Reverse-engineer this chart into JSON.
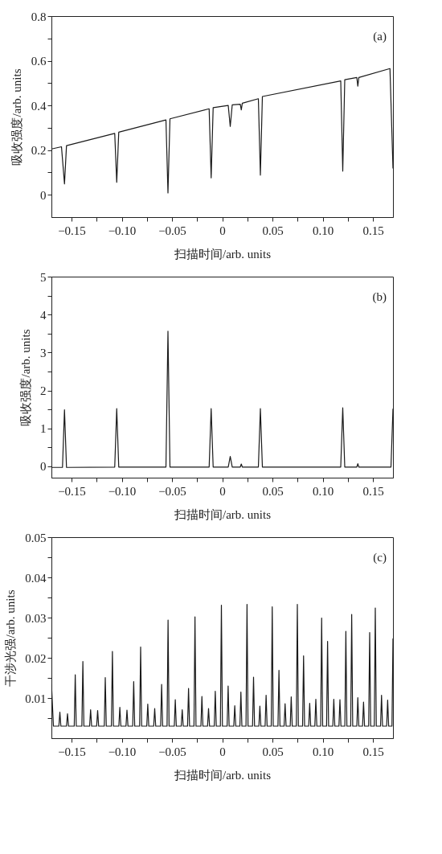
{
  "chart_data": [
    {
      "type": "line",
      "xlabel": "扫描时间/arb. units",
      "ylabel": "吸收强度/arb. units",
      "annotations": [
        "(a)"
      ],
      "grid": false,
      "xlim": [
        -0.17,
        0.17
      ],
      "ylim": [
        -0.1,
        0.8
      ],
      "xticks": [
        {
          "value": -0.15,
          "label": "−0.15"
        },
        {
          "value": -0.125,
          "label": null
        },
        {
          "value": -0.1,
          "label": "−0.10"
        },
        {
          "value": -0.075,
          "label": null
        },
        {
          "value": -0.05,
          "label": "−0.05"
        },
        {
          "value": -0.025,
          "label": null
        },
        {
          "value": 0,
          "label": "0"
        },
        {
          "value": 0.025,
          "label": null
        },
        {
          "value": 0.05,
          "label": "0.05"
        },
        {
          "value": 0.075,
          "label": null
        },
        {
          "value": 0.1,
          "label": "0.10"
        },
        {
          "value": 0.125,
          "label": null
        },
        {
          "value": 0.15,
          "label": "0.15"
        }
      ],
      "yticks": [
        0,
        {
          "value": 0.1,
          "label": null
        },
        0.2,
        {
          "value": 0.3,
          "label": null
        },
        0.4,
        {
          "value": 0.5,
          "label": null
        },
        0.6,
        {
          "value": 0.7,
          "label": null
        },
        0.8
      ],
      "series": [
        {
          "color": "#1a1a1a",
          "x": [
            -0.17,
            -0.16,
            -0.157,
            -0.155,
            -0.107,
            -0.105,
            -0.103,
            -0.056,
            -0.054,
            -0.052,
            -0.013,
            -0.011,
            -0.009,
            0.006,
            0.008,
            0.01,
            0.018,
            0.019,
            0.02,
            0.036,
            0.038,
            0.04,
            0.118,
            0.12,
            0.122,
            0.134,
            0.135,
            0.136,
            0.167,
            0.17
          ],
          "values": [
            0.205,
            0.215,
            0.049,
            0.22,
            0.275,
            0.056,
            0.28,
            0.335,
            0.008,
            0.34,
            0.385,
            0.076,
            0.39,
            0.4,
            0.306,
            0.403,
            0.405,
            0.38,
            0.41,
            0.43,
            0.088,
            0.44,
            0.51,
            0.106,
            0.515,
            0.525,
            0.486,
            0.525,
            0.565,
            0.118
          ]
        }
      ]
    },
    {
      "type": "line",
      "xlabel": "扫描时间/arb. units",
      "ylabel": "吸收强度/arb. units",
      "annotations": [
        "(b)"
      ],
      "grid": false,
      "xlim": [
        -0.17,
        0.17
      ],
      "ylim": [
        -0.3,
        5
      ],
      "xticks": [
        {
          "value": -0.15,
          "label": "−0.15"
        },
        {
          "value": -0.125,
          "label": null
        },
        {
          "value": -0.1,
          "label": "−0.10"
        },
        {
          "value": -0.075,
          "label": null
        },
        {
          "value": -0.05,
          "label": "−0.05"
        },
        {
          "value": -0.025,
          "label": null
        },
        {
          "value": 0,
          "label": "0"
        },
        {
          "value": 0.025,
          "label": null
        },
        {
          "value": 0.05,
          "label": "0.05"
        },
        {
          "value": 0.075,
          "label": null
        },
        {
          "value": 0.1,
          "label": "0.10"
        },
        {
          "value": 0.125,
          "label": null
        },
        {
          "value": 0.15,
          "label": "0.15"
        }
      ],
      "yticks": [
        0,
        {
          "value": 0.5,
          "label": null
        },
        1,
        {
          "value": 1.5,
          "label": null
        },
        2,
        {
          "value": 2.5,
          "label": null
        },
        3,
        {
          "value": 3.5,
          "label": null
        },
        4,
        {
          "value": 4.5,
          "label": null
        },
        5
      ],
      "series": [
        {
          "color": "#1a1a1a",
          "x": [
            -0.17,
            -0.159,
            -0.157,
            -0.155,
            -0.107,
            -0.105,
            -0.103,
            -0.056,
            -0.054,
            -0.052,
            -0.013,
            -0.011,
            -0.009,
            0.006,
            0.008,
            0.01,
            0.018,
            0.019,
            0.02,
            0.036,
            0.038,
            0.04,
            0.118,
            0.12,
            0.122,
            0.134,
            0.135,
            0.136,
            0.168,
            0.17
          ],
          "values": [
            -0.03,
            -0.03,
            1.49,
            -0.03,
            -0.02,
            1.52,
            -0.02,
            -0.02,
            3.56,
            -0.02,
            -0.02,
            1.52,
            -0.02,
            -0.02,
            0.26,
            -0.02,
            -0.02,
            0.06,
            -0.02,
            -0.02,
            1.52,
            -0.02,
            -0.02,
            1.54,
            -0.02,
            -0.02,
            0.07,
            -0.02,
            -0.02,
            1.52
          ]
        }
      ]
    },
    {
      "type": "line",
      "xlabel": "扫描时间/arb. units",
      "ylabel": "干涉光强/arb. units",
      "annotations": [
        "(c)"
      ],
      "grid": false,
      "xlim": [
        -0.17,
        0.17
      ],
      "ylim": [
        0,
        0.05
      ],
      "xticks": [
        {
          "value": -0.15,
          "label": "−0.15"
        },
        {
          "value": -0.125,
          "label": null
        },
        {
          "value": -0.1,
          "label": "−0.10"
        },
        {
          "value": -0.075,
          "label": null
        },
        {
          "value": -0.05,
          "label": "−0.05"
        },
        {
          "value": -0.025,
          "label": null
        },
        {
          "value": 0,
          "label": "0"
        },
        {
          "value": 0.025,
          "label": null
        },
        {
          "value": 0.05,
          "label": "0.05"
        },
        {
          "value": 0.075,
          "label": null
        },
        {
          "value": 0.1,
          "label": "0.10"
        },
        {
          "value": 0.125,
          "label": null
        },
        {
          "value": 0.15,
          "label": "0.15"
        }
      ],
      "yticks": [
        {
          "value": 0.005,
          "label": null
        },
        0.01,
        {
          "value": 0.015,
          "label": null
        },
        0.02,
        {
          "value": 0.025,
          "label": null
        },
        0.03,
        {
          "value": 0.035,
          "label": null
        },
        0.04,
        {
          "value": 0.045,
          "label": null
        },
        0.05
      ],
      "series": [
        {
          "color": "#1a1a1a",
          "x": [
            -0.17,
            -0.168,
            -0.1626,
            -0.1616,
            -0.1606,
            -0.155,
            -0.154,
            -0.153,
            -0.1473,
            -0.1463,
            -0.1453,
            -0.1397,
            -0.1387,
            -0.1377,
            -0.132,
            -0.131,
            -0.13,
            -0.125,
            -0.124,
            -0.123,
            -0.1174,
            -0.1164,
            -0.1154,
            -0.1103,
            -0.1093,
            -0.1083,
            -0.1029,
            -0.1019,
            -0.1009,
            -0.0958,
            -0.0948,
            -0.0938,
            -0.0891,
            -0.0881,
            -0.0871,
            -0.0822,
            -0.0812,
            -0.0802,
            -0.0751,
            -0.0741,
            -0.0731,
            -0.0682,
            -0.0672,
            -0.0662,
            -0.0613,
            -0.0603,
            -0.0593,
            -0.0549,
            -0.0539,
            -0.0529,
            -0.0477,
            -0.0467,
            -0.0457,
            -0.0408,
            -0.0398,
            -0.0388,
            -0.0345,
            -0.0335,
            -0.0325,
            -0.0281,
            -0.0271,
            -0.0261,
            -0.0212,
            -0.0202,
            -0.0192,
            -0.0146,
            -0.0136,
            -0.0126,
            -0.0079,
            -0.0069,
            -0.0059,
            -0.0018,
            -0.0008,
            0.0002,
            0.0049,
            0.0059,
            0.0069,
            0.0115,
            0.0125,
            0.0135,
            0.0176,
            0.0186,
            0.0196,
            0.0237,
            0.0247,
            0.0257,
            0.0302,
            0.0312,
            0.0322,
            0.0365,
            0.0375,
            0.0385,
            0.0427,
            0.0437,
            0.0447,
            0.0488,
            0.0498,
            0.0508,
            0.0555,
            0.0565,
            0.0575,
            0.0616,
            0.0626,
            0.0636,
            0.0677,
            0.0687,
            0.0697,
            0.0738,
            0.0748,
            0.0758,
            0.08,
            0.081,
            0.082,
            0.0861,
            0.0871,
            0.0881,
            0.0922,
            0.0932,
            0.0942,
            0.098,
            0.099,
            0.1,
            0.1039,
            0.1049,
            0.1059,
            0.1101,
            0.1111,
            0.1121,
            0.1162,
            0.1172,
            0.1182,
            0.1221,
            0.1231,
            0.1241,
            0.1279,
            0.1289,
            0.1299,
            0.134,
            0.135,
            0.136,
            0.1397,
            0.1407,
            0.1417,
            0.1458,
            0.1468,
            0.1478,
            0.1514,
            0.1524,
            0.1534,
            0.1576,
            0.1586,
            0.1596,
            0.1637,
            0.1647,
            0.1657,
            0.169,
            0.17
          ],
          "values": [
            0.0136,
            0.003,
            0.003,
            0.0065,
            0.003,
            0.003,
            0.0061,
            0.003,
            0.003,
            0.0158,
            0.003,
            0.003,
            0.0191,
            0.003,
            0.003,
            0.0071,
            0.003,
            0.003,
            0.0069,
            0.003,
            0.003,
            0.0151,
            0.003,
            0.003,
            0.0216,
            0.003,
            0.003,
            0.0077,
            0.003,
            0.003,
            0.007,
            0.003,
            0.003,
            0.0141,
            0.003,
            0.003,
            0.0227,
            0.003,
            0.003,
            0.0085,
            0.003,
            0.003,
            0.0074,
            0.003,
            0.003,
            0.0134,
            0.003,
            0.003,
            0.0294,
            0.003,
            0.003,
            0.0096,
            0.003,
            0.003,
            0.0071,
            0.003,
            0.003,
            0.0124,
            0.003,
            0.003,
            0.0302,
            0.003,
            0.003,
            0.0104,
            0.003,
            0.003,
            0.0074,
            0.003,
            0.003,
            0.0117,
            0.003,
            0.003,
            0.0331,
            0.003,
            0.003,
            0.013,
            0.003,
            0.003,
            0.0081,
            0.003,
            0.003,
            0.0115,
            0.003,
            0.003,
            0.0333,
            0.003,
            0.003,
            0.0152,
            0.003,
            0.003,
            0.008,
            0.003,
            0.003,
            0.0107,
            0.003,
            0.003,
            0.0327,
            0.003,
            0.003,
            0.0169,
            0.003,
            0.003,
            0.0086,
            0.003,
            0.003,
            0.0103,
            0.003,
            0.003,
            0.0333,
            0.003,
            0.003,
            0.0205,
            0.003,
            0.003,
            0.0087,
            0.003,
            0.003,
            0.0097,
            0.003,
            0.003,
            0.0299,
            0.003,
            0.003,
            0.0241,
            0.003,
            0.003,
            0.0097,
            0.003,
            0.003,
            0.0096,
            0.003,
            0.003,
            0.0266,
            0.003,
            0.003,
            0.0308,
            0.003,
            0.003,
            0.0101,
            0.003,
            0.003,
            0.009,
            0.003,
            0.003,
            0.0263,
            0.003,
            0.003,
            0.0324,
            0.003,
            0.003,
            0.0107,
            0.003,
            0.003,
            0.0095,
            0.003,
            0.003,
            0.0248
          ]
        }
      ]
    }
  ]
}
